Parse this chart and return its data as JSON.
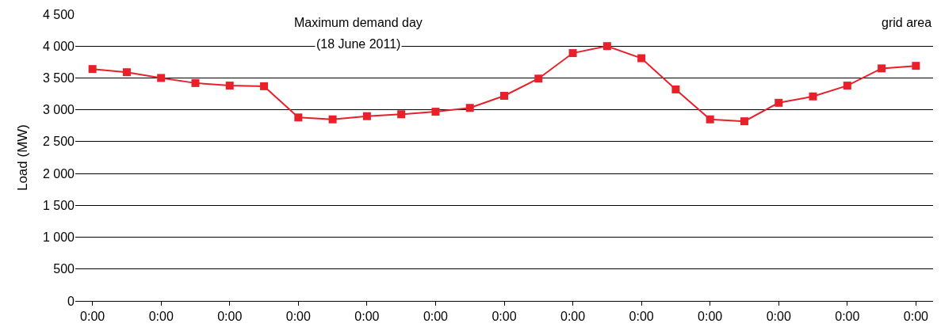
{
  "chart_data": {
    "type": "line",
    "ylabel": "Load (MW)",
    "categories": [
      "0:00",
      null,
      "0:00",
      null,
      "0:00",
      null,
      "0:00",
      null,
      "0:00",
      null,
      "0:00",
      null,
      "0:00",
      null,
      "0:00",
      null,
      "0:00",
      null,
      "0:00",
      null,
      "0:00",
      null,
      "0:00",
      null,
      "0:00"
    ],
    "series": [
      {
        "color": "#e8202a",
        "values": [
          3640,
          3590,
          3500,
          3420,
          3380,
          3370,
          2880,
          2850,
          2900,
          2930,
          2970,
          3030,
          3220,
          3490,
          3890,
          4000,
          3810,
          3320,
          2850,
          2820,
          3110,
          3210,
          3380,
          3650,
          3690
        ]
      }
    ],
    "ylim": [
      0,
      4500
    ],
    "yticks": [
      0,
      500,
      {
        "value": 1000,
        "label": "1 000"
      },
      {
        "value": 1500,
        "label": "1 500"
      },
      {
        "value": 2000,
        "label": "2 000"
      },
      {
        "value": 2500,
        "label": "2 500"
      },
      {
        "value": 3000,
        "label": "3 000"
      },
      {
        "value": 3500,
        "label": "3 500"
      },
      {
        "value": 4000,
        "label": "4 000"
      },
      {
        "value": 4500,
        "label": "4 500"
      }
    ],
    "grid": "y",
    "marker": "square",
    "line_style": "solid",
    "annotations": [
      "Maximum demand day",
      "(18 June 2011)",
      "grid area"
    ]
  }
}
